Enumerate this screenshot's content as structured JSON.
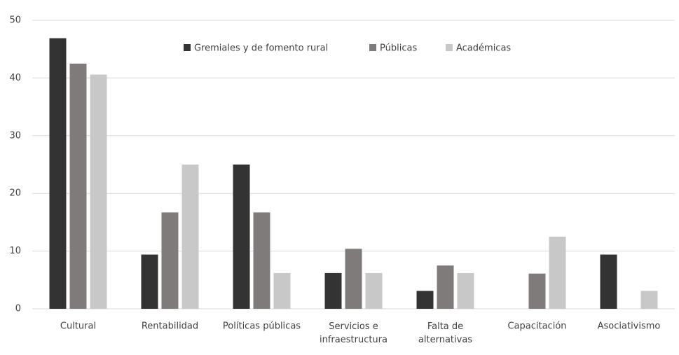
{
  "chart_data": {
    "type": "bar",
    "categories": [
      "Cultural",
      "Rentabilidad",
      "Políticas públicas",
      "Servicios e\ninfraestructura",
      "Falta de\nalternativas",
      "Capacitación",
      "Asociativismo"
    ],
    "series": [
      {
        "name": "Gremiales y de fomento rural",
        "color": "#333333",
        "values": [
          46.9,
          9.4,
          25.0,
          6.2,
          3.1,
          0,
          9.4
        ]
      },
      {
        "name": "Públicas",
        "color": "#807b7b",
        "values": [
          42.5,
          16.7,
          16.7,
          10.4,
          7.5,
          6.1,
          0
        ]
      },
      {
        "name": "Académicas",
        "color": "#c8c8c8",
        "values": [
          40.6,
          25.0,
          6.2,
          6.2,
          6.2,
          12.5,
          3.1
        ]
      }
    ],
    "ylim": [
      0,
      50
    ],
    "yticks": [
      0,
      10,
      20,
      30,
      40,
      50
    ],
    "grid": true,
    "legend": "top"
  }
}
